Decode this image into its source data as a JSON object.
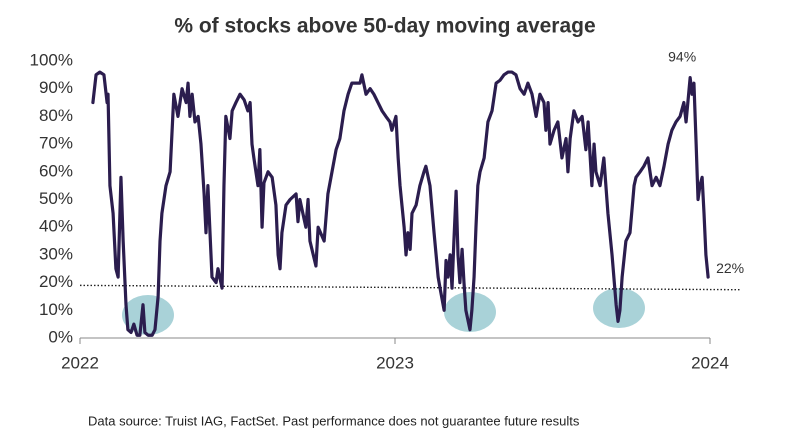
{
  "chart_data": {
    "type": "line",
    "title": "% of stocks above 50-day moving average",
    "note": "Data source: Truist IAG, FactSet. Past performance does not guarantee future results",
    "xlim": [
      2022,
      2024
    ],
    "xticks": [
      2022,
      2023,
      2024
    ],
    "ylim": [
      0,
      100
    ],
    "yticks": [
      {
        "value": 0,
        "label": "0%"
      },
      {
        "value": 10,
        "label": "10%"
      },
      {
        "value": 20,
        "label": "20%"
      },
      {
        "value": 30,
        "label": "30%"
      },
      {
        "value": 40,
        "label": "40%"
      },
      {
        "value": 50,
        "label": "50%"
      },
      {
        "value": 60,
        "label": "60%"
      },
      {
        "value": 70,
        "label": "70%"
      },
      {
        "value": 80,
        "label": "80%"
      },
      {
        "value": 90,
        "label": "90%"
      },
      {
        "value": 100,
        "label": "100%"
      }
    ],
    "grid": false,
    "reference_line": {
      "values": [
        19,
        17.5
      ],
      "style": "dotted",
      "color": "#222222"
    },
    "annotations": [
      {
        "text": "94%",
        "x": 2023.937,
        "y": 94
      },
      {
        "text": "22%",
        "x": 2023.994,
        "y": 22
      }
    ],
    "series": [
      {
        "name": "% of stocks above 50-day moving average",
        "color": "#2b1d4e",
        "x": [
          2022.041,
          2022.051,
          2022.063,
          2022.076,
          2022.086,
          2022.089,
          2022.095,
          2022.105,
          2022.114,
          2022.121,
          2022.13,
          2022.137,
          2022.146,
          2022.152,
          2022.162,
          2022.171,
          2022.181,
          2022.19,
          2022.2,
          2022.206,
          2022.216,
          2022.229,
          2022.238,
          2022.248,
          2022.254,
          2022.26,
          2022.273,
          2022.286,
          2022.298,
          2022.311,
          2022.324,
          2022.337,
          2022.343,
          2022.349,
          2022.356,
          2022.365,
          2022.375,
          2022.384,
          2022.394,
          2022.4,
          2022.406,
          2022.419,
          2022.432,
          2022.438,
          2022.451,
          2022.457,
          2022.463,
          2022.476,
          2022.483,
          2022.495,
          2022.508,
          2022.521,
          2022.533,
          2022.54,
          2022.546,
          2022.552,
          2022.565,
          2022.571,
          2022.578,
          2022.584,
          2022.597,
          2022.61,
          2022.622,
          2022.629,
          2022.635,
          2022.641,
          2022.654,
          2022.667,
          2022.686,
          2022.692,
          2022.698,
          2022.717,
          2022.724,
          2022.73,
          2022.749,
          2022.756,
          2022.775,
          2022.787,
          2022.8,
          2022.813,
          2022.825,
          2022.838,
          2022.851,
          2022.863,
          2022.876,
          2022.889,
          2022.895,
          2022.908,
          2022.921,
          2022.933,
          2022.946,
          2022.959,
          2022.971,
          2022.984,
          2022.99,
          2023.003,
          2023.01,
          2023.016,
          2023.022,
          2023.029,
          2023.035,
          2023.041,
          2023.048,
          2023.054,
          2023.067,
          2023.079,
          2023.092,
          2023.098,
          2023.111,
          2023.124,
          2023.137,
          2023.143,
          2023.156,
          2023.162,
          2023.168,
          2023.175,
          2023.181,
          2023.187,
          2023.194,
          2023.2,
          2023.206,
          2023.213,
          2023.219,
          2023.225,
          2023.238,
          2023.244,
          2023.251,
          2023.257,
          2023.263,
          2023.27,
          2023.283,
          2023.295,
          2023.308,
          2023.321,
          2023.333,
          2023.346,
          2023.359,
          2023.371,
          2023.384,
          2023.397,
          2023.41,
          2023.422,
          2023.435,
          2023.448,
          2023.46,
          2023.473,
          2023.479,
          2023.486,
          2023.492,
          2023.505,
          2023.517,
          2023.53,
          2023.543,
          2023.549,
          2023.556,
          2023.568,
          2023.581,
          2023.594,
          2023.606,
          2023.613,
          2023.625,
          2023.632,
          2023.638,
          2023.651,
          2023.663,
          2023.676,
          2023.689,
          2023.702,
          2023.708,
          2023.714,
          2023.721,
          2023.733,
          2023.746,
          2023.759,
          2023.765,
          2023.778,
          2023.79,
          2023.803,
          2023.816,
          2023.829,
          2023.841,
          2023.854,
          2023.867,
          2023.879,
          2023.892,
          2023.905,
          2023.917,
          2023.924,
          2023.937,
          2023.943,
          2023.949,
          2023.956,
          2023.962,
          2023.968,
          2023.975,
          2023.981,
          2023.987,
          2023.994
        ],
        "values": [
          85,
          95,
          96,
          95,
          85,
          88,
          55,
          45,
          25,
          22,
          58,
          35,
          12,
          3,
          2,
          5,
          1,
          1,
          12,
          2,
          1,
          1,
          3,
          15,
          35,
          45,
          55,
          60,
          88,
          80,
          90,
          85,
          92,
          80,
          88,
          78,
          80,
          70,
          52,
          38,
          55,
          22,
          20,
          25,
          18,
          55,
          80,
          72,
          82,
          85,
          88,
          86,
          82,
          85,
          70,
          65,
          55,
          68,
          40,
          56,
          60,
          58,
          48,
          30,
          25,
          38,
          48,
          50,
          52,
          42,
          50,
          40,
          50,
          35,
          26,
          40,
          35,
          52,
          60,
          68,
          72,
          82,
          88,
          92,
          92,
          92,
          95,
          88,
          90,
          88,
          85,
          82,
          80,
          78,
          75,
          80,
          65,
          55,
          48,
          40,
          30,
          38,
          32,
          45,
          48,
          55,
          60,
          62,
          55,
          38,
          22,
          18,
          10,
          28,
          22,
          30,
          18,
          35,
          53,
          30,
          20,
          32,
          20,
          10,
          3,
          10,
          22,
          40,
          55,
          60,
          65,
          78,
          82,
          92,
          93,
          95,
          96,
          96,
          95,
          90,
          88,
          92,
          88,
          80,
          88,
          85,
          75,
          85,
          70,
          75,
          78,
          65,
          72,
          60,
          72,
          82,
          78,
          80,
          68,
          78,
          55,
          70,
          60,
          55,
          65,
          45,
          30,
          12,
          6,
          10,
          22,
          35,
          38,
          55,
          58,
          60,
          62,
          65,
          55,
          58,
          55,
          62,
          70,
          75,
          78,
          80,
          85,
          78,
          94,
          88,
          92,
          70,
          50,
          55,
          58,
          45,
          30,
          22
        ]
      }
    ]
  }
}
